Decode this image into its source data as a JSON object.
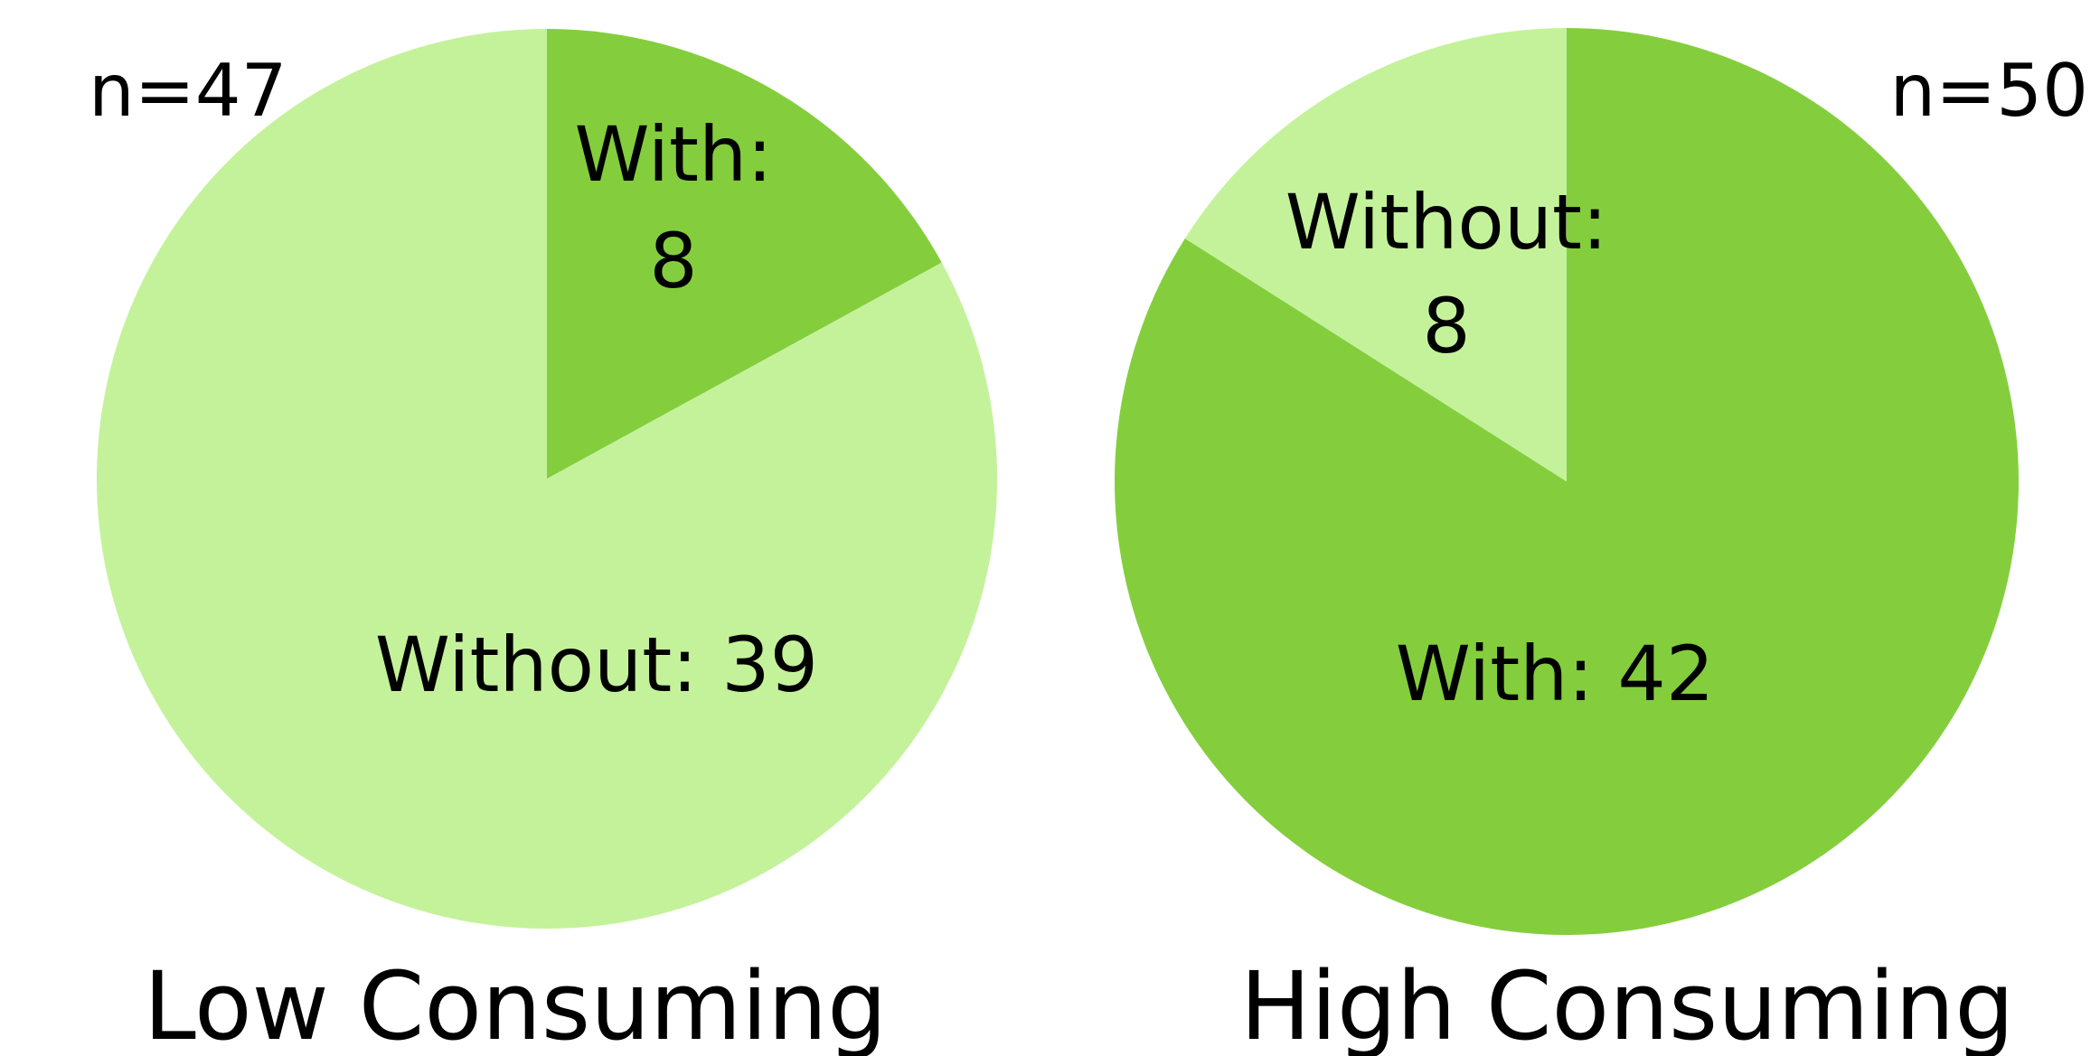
{
  "chart_data": [
    {
      "type": "pie",
      "title": "Low Consuming",
      "n_label": "n=47",
      "categories": [
        "With",
        "Without"
      ],
      "values": [
        8,
        39
      ],
      "colors": [
        "#84CE3D",
        "#C4F29A"
      ],
      "slice_labels": [
        {
          "line1": "With:",
          "line2": "8"
        },
        {
          "line1": "Without: 39",
          "line2": ""
        }
      ]
    },
    {
      "type": "pie",
      "title": "High Consuming",
      "n_label": "n=50",
      "categories": [
        "With",
        "Without"
      ],
      "values": [
        42,
        8
      ],
      "colors": [
        "#84CE3D",
        "#C4F29A"
      ],
      "slice_labels": [
        {
          "line1": "With: 42",
          "line2": ""
        },
        {
          "line1": "Without:",
          "line2": "8"
        }
      ]
    }
  ]
}
